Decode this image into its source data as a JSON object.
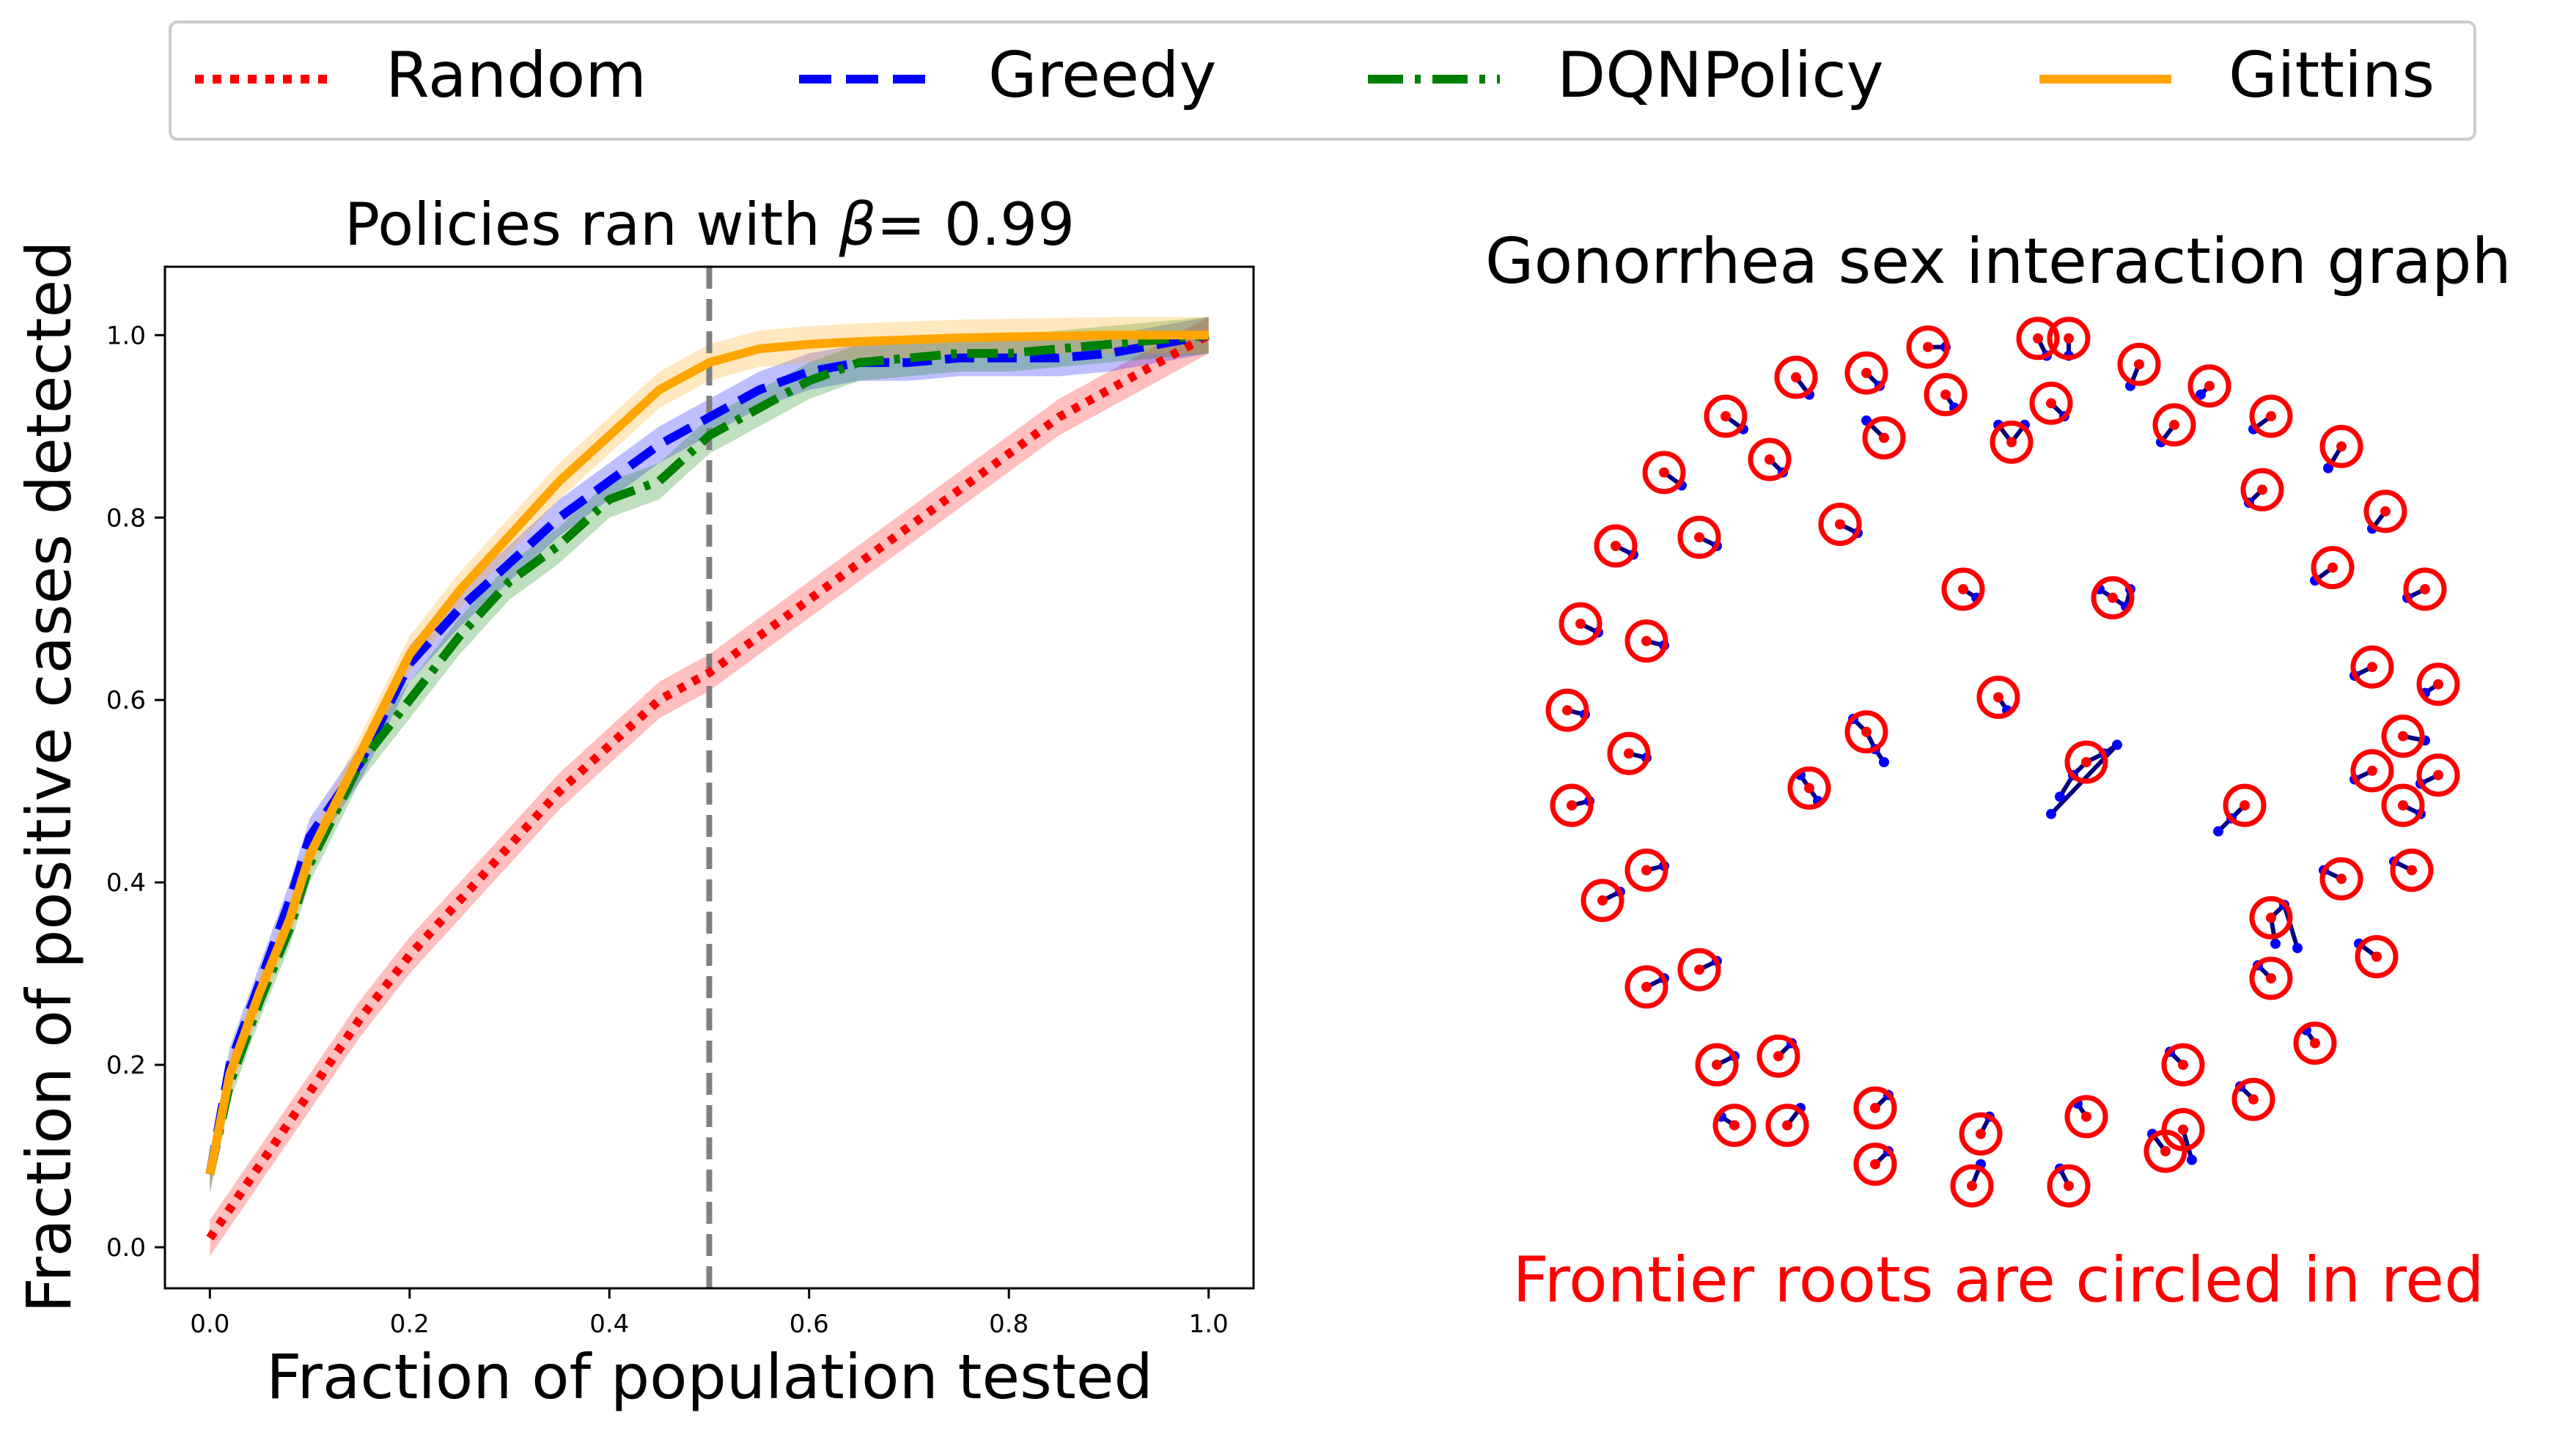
{
  "legend": {
    "entries": [
      {
        "label": "Random",
        "color": "#ff0000",
        "style": "dotted"
      },
      {
        "label": "Greedy",
        "color": "#0000ff",
        "style": "dashed"
      },
      {
        "label": "DQNPolicy",
        "color": "#008000",
        "style": "dashdot"
      },
      {
        "label": "Gittins",
        "color": "#ffa500",
        "style": "solid"
      }
    ]
  },
  "chart_data": [
    {
      "type": "line",
      "title_prefix": "Policies ran with ",
      "title_symbol": "β",
      "title_suffix": "=  0.99",
      "xlabel": "Fraction of population tested",
      "ylabel": "Fraction of positive cases detected",
      "xlim": [
        -0.045,
        1.045
      ],
      "ylim": [
        -0.045,
        1.075
      ],
      "x_ticks": [
        0.0,
        0.2,
        0.4,
        0.6,
        0.8,
        1.0
      ],
      "x_tick_labels": [
        "0.0",
        "0.2",
        "0.4",
        "0.6",
        "0.8",
        "1.0"
      ],
      "y_ticks": [
        0.0,
        0.2,
        0.4,
        0.6,
        0.8,
        1.0
      ],
      "y_tick_labels": [
        "0.0",
        "0.2",
        "0.4",
        "0.6",
        "0.8",
        "1.0"
      ],
      "vline": {
        "x": 0.5,
        "color": "#808080",
        "style": "dashed"
      },
      "band": 0.02,
      "series": [
        {
          "name": "Random",
          "color": "#ff0000",
          "style": "dotted",
          "x": [
            0.0,
            0.05,
            0.1,
            0.15,
            0.2,
            0.25,
            0.3,
            0.35,
            0.4,
            0.45,
            0.5,
            0.55,
            0.6,
            0.65,
            0.7,
            0.75,
            0.8,
            0.85,
            0.9,
            0.95,
            1.0
          ],
          "y": [
            0.01,
            0.09,
            0.17,
            0.25,
            0.32,
            0.38,
            0.44,
            0.5,
            0.55,
            0.6,
            0.63,
            0.67,
            0.71,
            0.75,
            0.79,
            0.83,
            0.87,
            0.91,
            0.94,
            0.97,
            1.0
          ]
        },
        {
          "name": "Greedy",
          "color": "#0000ff",
          "style": "dashed",
          "x": [
            0.0,
            0.02,
            0.05,
            0.08,
            0.1,
            0.15,
            0.2,
            0.25,
            0.3,
            0.35,
            0.4,
            0.45,
            0.5,
            0.55,
            0.6,
            0.65,
            0.7,
            0.75,
            0.8,
            0.85,
            0.9,
            0.95,
            1.0
          ],
          "y": [
            0.08,
            0.2,
            0.29,
            0.38,
            0.45,
            0.53,
            0.64,
            0.7,
            0.75,
            0.8,
            0.84,
            0.88,
            0.91,
            0.94,
            0.96,
            0.97,
            0.97,
            0.975,
            0.975,
            0.975,
            0.98,
            0.99,
            1.0
          ]
        },
        {
          "name": "DQNPolicy",
          "color": "#008000",
          "style": "dashdot",
          "x": [
            0.0,
            0.02,
            0.05,
            0.08,
            0.1,
            0.15,
            0.2,
            0.25,
            0.3,
            0.35,
            0.4,
            0.45,
            0.5,
            0.55,
            0.6,
            0.65,
            0.7,
            0.75,
            0.8,
            0.85,
            0.9,
            0.95,
            1.0
          ],
          "y": [
            0.08,
            0.18,
            0.27,
            0.35,
            0.42,
            0.53,
            0.6,
            0.67,
            0.73,
            0.77,
            0.82,
            0.84,
            0.89,
            0.92,
            0.95,
            0.97,
            0.975,
            0.98,
            0.98,
            0.985,
            0.99,
            0.995,
            1.0
          ]
        },
        {
          "name": "Gittins",
          "color": "#ffa500",
          "style": "solid",
          "x": [
            0.0,
            0.02,
            0.05,
            0.08,
            0.1,
            0.15,
            0.2,
            0.25,
            0.3,
            0.35,
            0.4,
            0.45,
            0.5,
            0.55,
            0.6,
            0.65,
            0.7,
            0.75,
            0.8,
            0.85,
            0.9,
            0.95,
            1.0
          ],
          "y": [
            0.08,
            0.19,
            0.28,
            0.36,
            0.43,
            0.54,
            0.65,
            0.72,
            0.78,
            0.84,
            0.89,
            0.94,
            0.97,
            0.985,
            0.99,
            0.993,
            0.995,
            0.997,
            0.998,
            0.999,
            1.0,
            1.0,
            1.0
          ]
        }
      ]
    },
    {
      "type": "network",
      "title": "Gonorrhea sex interaction graph",
      "caption": "Frontier roots are circled in red",
      "root_color": "#ff0000",
      "node_color": "#0000ff",
      "edge_color": "#000080",
      "components": [
        {
          "nodes": [
            [
              -0.3,
              0.9
            ],
            [
              -0.27,
              0.87
            ]
          ]
        },
        {
          "nodes": [
            [
              -0.16,
              0.96
            ],
            [
              -0.12,
              0.96
            ]
          ]
        },
        {
          "nodes": [
            [
              0.09,
              0.98
            ],
            [
              0.11,
              0.94
            ]
          ]
        },
        {
          "nodes": [
            [
              0.16,
              0.98
            ],
            [
              0.16,
              0.94
            ]
          ]
        },
        {
          "nodes": [
            [
              0.32,
              0.92
            ],
            [
              0.3,
              0.87
            ]
          ]
        },
        {
          "nodes": [
            [
              0.48,
              0.87
            ],
            [
              0.46,
              0.85
            ]
          ]
        },
        {
          "nodes": [
            [
              0.62,
              0.8
            ],
            [
              0.58,
              0.77
            ]
          ]
        },
        {
          "nodes": [
            [
              0.78,
              0.73
            ],
            [
              0.75,
              0.68
            ]
          ]
        },
        {
          "nodes": [
            [
              0.88,
              0.58
            ],
            [
              0.85,
              0.54
            ]
          ]
        },
        {
          "nodes": [
            [
              0.97,
              0.4
            ],
            [
              0.93,
              0.38
            ]
          ]
        },
        {
          "nodes": [
            [
              1.0,
              0.18
            ],
            [
              0.97,
              0.16
            ]
          ]
        },
        {
          "nodes": [
            [
              1.0,
              -0.03
            ],
            [
              0.96,
              -0.05
            ]
          ]
        },
        {
          "nodes": [
            [
              0.94,
              -0.25
            ],
            [
              0.9,
              -0.23
            ]
          ]
        },
        {
          "nodes": [
            [
              0.86,
              -0.45
            ],
            [
              0.82,
              -0.42
            ]
          ]
        },
        {
          "nodes": [
            [
              0.72,
              -0.65
            ],
            [
              0.7,
              -0.62
            ]
          ]
        },
        {
          "nodes": [
            [
              0.58,
              -0.78
            ],
            [
              0.55,
              -0.75
            ]
          ]
        },
        {
          "nodes": [
            [
              0.38,
              -0.9
            ],
            [
              0.35,
              -0.86
            ]
          ]
        },
        {
          "nodes": [
            [
              0.16,
              -0.98
            ],
            [
              0.14,
              -0.94
            ]
          ]
        },
        {
          "nodes": [
            [
              -0.06,
              -0.98
            ],
            [
              -0.04,
              -0.93
            ]
          ]
        },
        {
          "nodes": [
            [
              -0.28,
              -0.93
            ],
            [
              -0.25,
              -0.9
            ]
          ]
        },
        {
          "nodes": [
            [
              -0.48,
              -0.84
            ],
            [
              -0.45,
              -0.8
            ]
          ]
        },
        {
          "nodes": [
            [
              -0.64,
              -0.7
            ],
            [
              -0.6,
              -0.68
            ]
          ]
        },
        {
          "nodes": [
            [
              -0.8,
              -0.52
            ],
            [
              -0.76,
              -0.5
            ]
          ]
        },
        {
          "nodes": [
            [
              -0.9,
              -0.32
            ],
            [
              -0.86,
              -0.3
            ]
          ]
        },
        {
          "nodes": [
            [
              -0.97,
              -0.1
            ],
            [
              -0.93,
              -0.09
            ]
          ]
        },
        {
          "nodes": [
            [
              -0.98,
              0.12
            ],
            [
              -0.94,
              0.11
            ]
          ]
        },
        {
          "nodes": [
            [
              -0.95,
              0.32
            ],
            [
              -0.91,
              0.3
            ]
          ]
        },
        {
          "nodes": [
            [
              -0.87,
              0.5
            ],
            [
              -0.83,
              0.48
            ]
          ]
        },
        {
          "nodes": [
            [
              -0.76,
              0.67
            ],
            [
              -0.72,
              0.64
            ]
          ]
        },
        {
          "nodes": [
            [
              -0.62,
              0.8
            ],
            [
              -0.58,
              0.77
            ]
          ]
        },
        {
          "nodes": [
            [
              -0.46,
              0.89
            ],
            [
              -0.43,
              0.85
            ]
          ]
        },
        {
          "nodes": [
            [
              -0.12,
              0.85
            ],
            [
              -0.1,
              0.82
            ]
          ]
        },
        {
          "nodes": [
            [
              0.12,
              0.83
            ],
            [
              0.15,
              0.8
            ]
          ]
        },
        {
          "nodes": [
            [
              0.4,
              0.78
            ],
            [
              0.37,
              0.74
            ]
          ]
        },
        {
          "nodes": [
            [
              0.6,
              0.63
            ],
            [
              0.57,
              0.6
            ]
          ]
        },
        {
          "nodes": [
            [
              0.76,
              0.45
            ],
            [
              0.72,
              0.42
            ]
          ]
        },
        {
          "nodes": [
            [
              0.85,
              0.22
            ],
            [
              0.81,
              0.2
            ]
          ]
        },
        {
          "nodes": [
            [
              0.85,
              -0.02
            ],
            [
              0.81,
              -0.04
            ]
          ]
        },
        {
          "nodes": [
            [
              0.78,
              -0.27
            ],
            [
              0.74,
              -0.25
            ]
          ]
        },
        {
          "nodes": [
            [
              0.62,
              -0.5
            ],
            [
              0.59,
              -0.47
            ]
          ]
        },
        {
          "nodes": [
            [
              0.42,
              -0.7
            ],
            [
              0.39,
              -0.67
            ]
          ]
        },
        {
          "nodes": [
            [
              0.2,
              -0.82
            ],
            [
              0.18,
              -0.79
            ]
          ]
        },
        {
          "nodes": [
            [
              -0.04,
              -0.86
            ],
            [
              -0.02,
              -0.82
            ]
          ]
        },
        {
          "nodes": [
            [
              -0.28,
              -0.8
            ],
            [
              -0.25,
              -0.77
            ]
          ]
        },
        {
          "nodes": [
            [
              -0.5,
              -0.68
            ],
            [
              -0.47,
              -0.65
            ]
          ]
        },
        {
          "nodes": [
            [
              -0.68,
              -0.48
            ],
            [
              -0.64,
              -0.46
            ]
          ]
        },
        {
          "nodes": [
            [
              -0.8,
              -0.25
            ],
            [
              -0.76,
              -0.24
            ]
          ]
        },
        {
          "nodes": [
            [
              -0.84,
              0.02
            ],
            [
              -0.8,
              0.01
            ]
          ]
        },
        {
          "nodes": [
            [
              -0.8,
              0.28
            ],
            [
              -0.76,
              0.27
            ]
          ]
        },
        {
          "nodes": [
            [
              -0.68,
              0.52
            ],
            [
              -0.64,
              0.5
            ]
          ]
        },
        {
          "nodes": [
            [
              -0.52,
              0.7
            ],
            [
              -0.49,
              0.67
            ]
          ]
        },
        {
          "nodes": [
            [
              -0.36,
              0.55
            ],
            [
              -0.32,
              0.53
            ]
          ]
        },
        {
          "nodes": [
            [
              -0.08,
              0.4
            ],
            [
              -0.05,
              0.38
            ]
          ]
        },
        {
          "nodes": [
            [
              0.26,
              0.38
            ],
            [
              0.29,
              0.36
            ],
            [
              0.23,
              0.4
            ],
            [
              0.3,
              0.4
            ]
          ]
        },
        {
          "nodes": [
            [
              0.0,
              0.15
            ],
            [
              0.02,
              0.12
            ]
          ]
        },
        {
          "nodes": [
            [
              -0.3,
              0.07
            ],
            [
              -0.28,
              0.03
            ],
            [
              -0.33,
              0.1
            ],
            [
              -0.26,
              0.0
            ]
          ]
        },
        {
          "nodes": [
            [
              0.2,
              0.0
            ],
            [
              0.24,
              0.02
            ],
            [
              0.17,
              -0.03
            ],
            [
              0.27,
              0.04
            ],
            [
              0.14,
              -0.08
            ],
            [
              0.12,
              -0.12
            ]
          ]
        },
        {
          "nodes": [
            [
              -0.43,
              -0.06
            ],
            [
              -0.45,
              -0.03
            ],
            [
              -0.41,
              -0.09
            ]
          ]
        },
        {
          "nodes": [
            [
              0.56,
              -0.1
            ],
            [
              0.53,
              -0.13
            ],
            [
              0.5,
              -0.16
            ]
          ]
        },
        {
          "nodes": [
            [
              0.03,
              0.74
            ],
            [
              0.0,
              0.78
            ],
            [
              0.06,
              0.78
            ]
          ]
        },
        {
          "nodes": [
            [
              0.62,
              -0.36
            ],
            [
              0.65,
              -0.33
            ],
            [
              0.63,
              -0.42
            ],
            [
              0.68,
              -0.43
            ]
          ]
        },
        {
          "nodes": [
            [
              0.92,
              0.06
            ],
            [
              0.97,
              0.05
            ]
          ]
        },
        {
          "nodes": [
            [
              0.42,
              -0.85
            ],
            [
              0.44,
              -0.92
            ]
          ]
        },
        {
          "nodes": [
            [
              -0.26,
              0.75
            ],
            [
              -0.3,
              0.79
            ]
          ]
        },
        {
          "nodes": [
            [
              -0.6,
              -0.84
            ],
            [
              -0.63,
              -0.82
            ]
          ]
        },
        {
          "nodes": [
            [
              0.92,
              -0.1
            ],
            [
              0.96,
              -0.12
            ]
          ]
        }
      ]
    }
  ]
}
